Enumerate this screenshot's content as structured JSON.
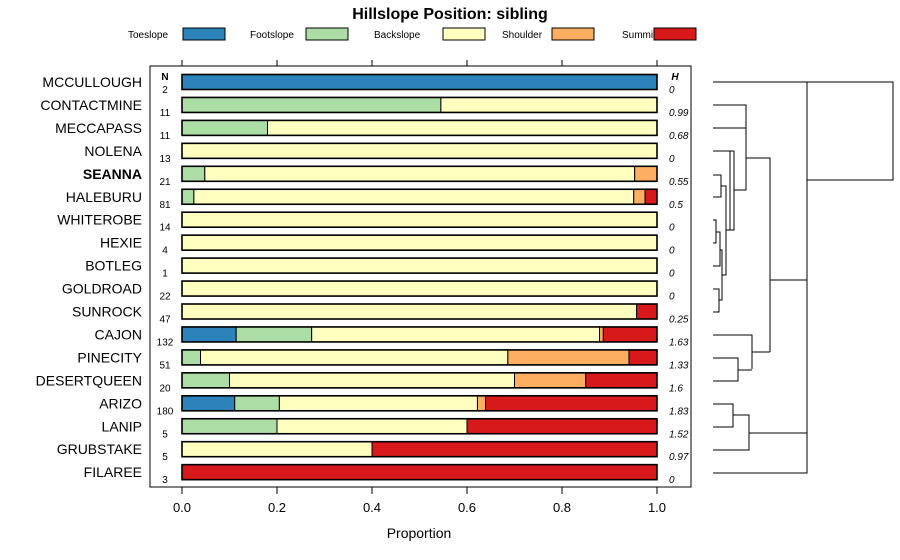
{
  "chart_data": {
    "type": "bar",
    "stacked": true,
    "orientation": "horizontal",
    "title": "Hillslope Position: sibling",
    "xlabel": "Proportion",
    "ylabel": "",
    "xlim": [
      0,
      1
    ],
    "xticks": [
      "0.0",
      "0.2",
      "0.4",
      "0.6",
      "0.8",
      "1.0"
    ],
    "n_header": "N",
    "h_header": "H",
    "highlight": "SEANNA",
    "series": [
      {
        "name": "Toeslope",
        "color": "#2b83ba"
      },
      {
        "name": "Footslope",
        "color": "#abdda4"
      },
      {
        "name": "Backslope",
        "color": "#ffffbf"
      },
      {
        "name": "Shoulder",
        "color": "#fdae61"
      },
      {
        "name": "Summit",
        "color": "#d7191c"
      }
    ],
    "rows": [
      {
        "label": "MCCULLOUGH",
        "n": "2",
        "h": "0",
        "values": [
          1.0,
          0,
          0,
          0,
          0
        ]
      },
      {
        "label": "CONTACTMINE",
        "n": "11",
        "h": "0.99",
        "values": [
          0,
          0.545,
          0.455,
          0,
          0
        ]
      },
      {
        "label": "MECCAPASS",
        "n": "11",
        "h": "0.68",
        "values": [
          0,
          0.18,
          0.82,
          0,
          0
        ]
      },
      {
        "label": "NOLENA",
        "n": "13",
        "h": "0",
        "values": [
          0,
          0,
          1.0,
          0,
          0
        ]
      },
      {
        "label": "SEANNA",
        "n": "21",
        "h": "0.55",
        "values": [
          0,
          0.048,
          0.905,
          0.047,
          0
        ]
      },
      {
        "label": "HALEBURU",
        "n": "81",
        "h": "0.5",
        "values": [
          0,
          0.025,
          0.926,
          0.024,
          0.025
        ]
      },
      {
        "label": "WHITEROBE",
        "n": "14",
        "h": "0",
        "values": [
          0,
          0,
          1.0,
          0,
          0
        ]
      },
      {
        "label": "HEXIE",
        "n": "4",
        "h": "0",
        "values": [
          0,
          0,
          1.0,
          0,
          0
        ]
      },
      {
        "label": "BOTLEG",
        "n": "1",
        "h": "0",
        "values": [
          0,
          0,
          1.0,
          0,
          0
        ]
      },
      {
        "label": "GOLDROAD",
        "n": "22",
        "h": "0",
        "values": [
          0,
          0,
          1.0,
          0,
          0
        ]
      },
      {
        "label": "SUNROCK",
        "n": "47",
        "h": "0.25",
        "values": [
          0,
          0,
          0.957,
          0,
          0.043
        ]
      },
      {
        "label": "CAJON",
        "n": "132",
        "h": "1.63",
        "values": [
          0.114,
          0.159,
          0.606,
          0.008,
          0.113
        ]
      },
      {
        "label": "PINECITY",
        "n": "51",
        "h": "1.33",
        "values": [
          0,
          0.039,
          0.647,
          0.255,
          0.059
        ]
      },
      {
        "label": "DESERTQUEEN",
        "n": "20",
        "h": "1.6",
        "values": [
          0,
          0.1,
          0.6,
          0.15,
          0.15
        ]
      },
      {
        "label": "ARIZO",
        "n": "180",
        "h": "1.83",
        "values": [
          0.111,
          0.094,
          0.417,
          0.017,
          0.361
        ]
      },
      {
        "label": "LANIP",
        "n": "5",
        "h": "1.52",
        "values": [
          0,
          0.2,
          0.4,
          0,
          0.4
        ]
      },
      {
        "label": "GRUBSTAKE",
        "n": "5",
        "h": "0.97",
        "values": [
          0,
          0,
          0.4,
          0,
          0.6
        ]
      },
      {
        "label": "FILAREE",
        "n": "3",
        "h": "0",
        "values": [
          0,
          0,
          0,
          0,
          1.0
        ]
      }
    ]
  }
}
